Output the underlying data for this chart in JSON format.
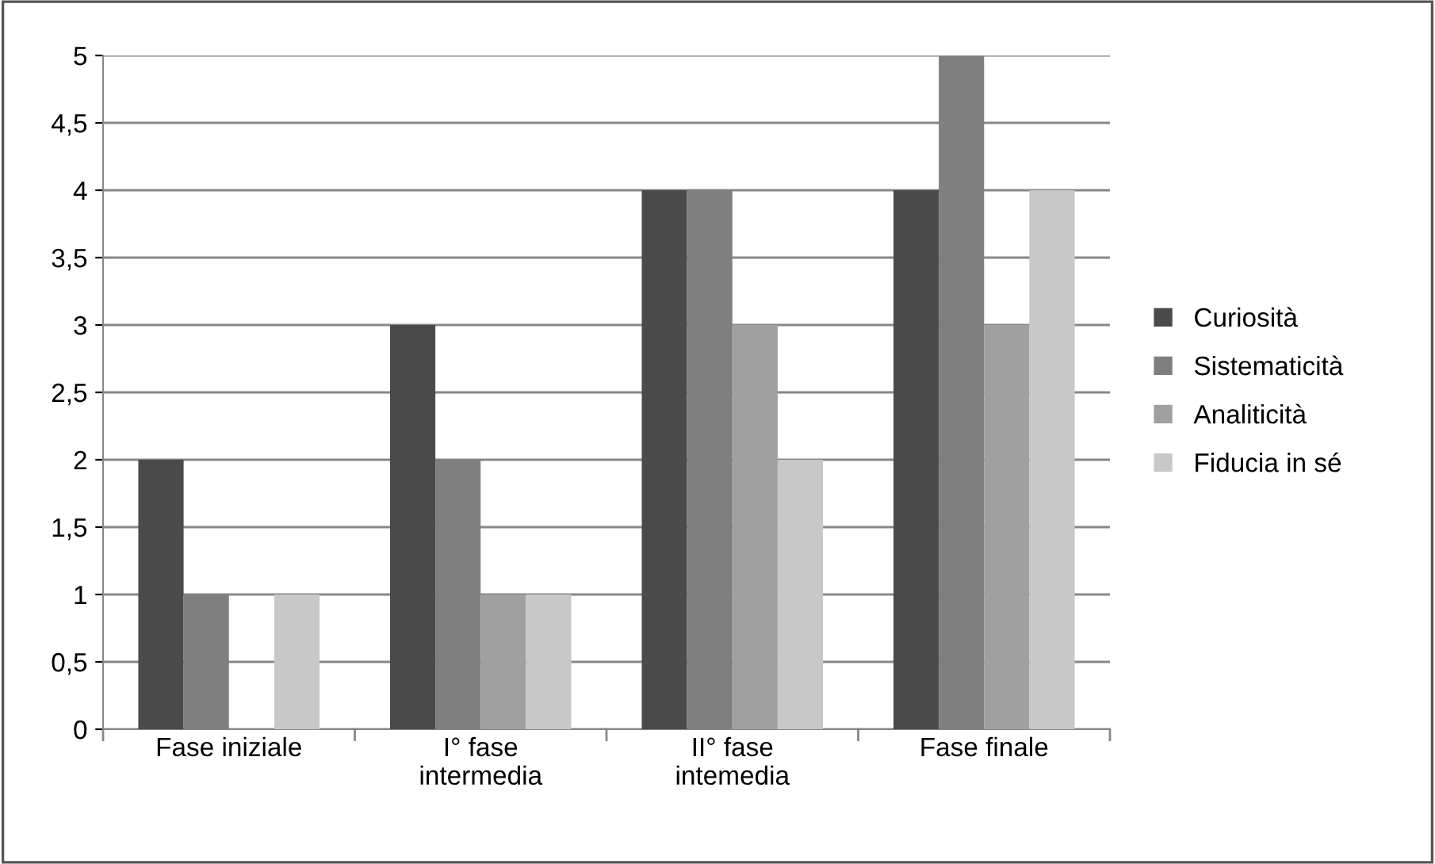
{
  "chart_data": {
    "type": "bar",
    "categories": [
      "Fase iniziale",
      "I° fase\nintermedia",
      "II° fase\nintemedia",
      "Fase finale"
    ],
    "series": [
      {
        "name": "Curiosità",
        "color": "#4a4a4a",
        "values": [
          2,
          3,
          4,
          4
        ]
      },
      {
        "name": "Sistematicità",
        "color": "#7f7f7f",
        "values": [
          1,
          2,
          4,
          5
        ]
      },
      {
        "name": "Analiticità",
        "color": "#a0a0a0",
        "values": [
          0,
          1,
          3,
          3
        ]
      },
      {
        "name": "Fiducia in sé",
        "color": "#c8c8c8",
        "values": [
          1,
          1,
          2,
          4
        ]
      }
    ],
    "ylim": [
      0,
      5
    ],
    "yticks": [
      0,
      {
        "value": 0.5,
        "label": "0,5"
      },
      1,
      {
        "value": 1.5,
        "label": "1,5"
      },
      2,
      {
        "value": 2.5,
        "label": "2,5"
      },
      3,
      {
        "value": 3.5,
        "label": "3,5"
      },
      4,
      {
        "value": 4.5,
        "label": "4,5"
      },
      5
    ],
    "grid": "y",
    "legend": "right"
  }
}
